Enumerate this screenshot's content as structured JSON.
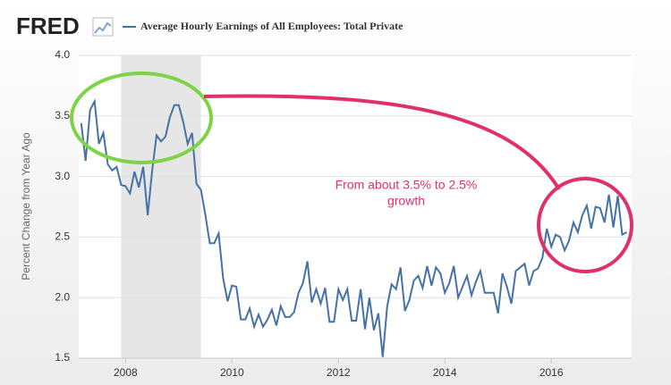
{
  "chart_data": {
    "type": "line",
    "logo": "FRED",
    "y_label": "Percent Change from Year Ago",
    "annotation": [
      "From about 3.5% to 2.5%",
      "growth"
    ],
    "annotation_color": "#e0306c",
    "highlight_color": "#7ed348",
    "recession": [
      2007.917,
      2009.417
    ],
    "recession_color": "#e6e6e6",
    "grid": true,
    "xlim": [
      2007.12,
      2017.51
    ],
    "xticks": [
      2008,
      2010,
      2012,
      2014,
      2016
    ],
    "ylim": [
      1.5,
      4.0
    ],
    "yticks": [
      1.5,
      {
        "value": 2,
        "label": "2.0"
      },
      2.5,
      {
        "value": 3,
        "label": "3.0"
      },
      3.5,
      {
        "value": 4,
        "label": "4.0"
      }
    ],
    "x": [
      2007.167,
      2007.25,
      2007.333,
      2007.417,
      2007.5,
      2007.583,
      2007.667,
      2007.75,
      2007.833,
      2007.917,
      2008,
      2008.083,
      2008.167,
      2008.25,
      2008.333,
      2008.417,
      2008.5,
      2008.583,
      2008.667,
      2008.75,
      2008.833,
      2008.917,
      2009,
      2009.083,
      2009.167,
      2009.25,
      2009.333,
      2009.417,
      2009.5,
      2009.583,
      2009.667,
      2009.75,
      2009.833,
      2009.917,
      2010,
      2010.083,
      2010.167,
      2010.25,
      2010.333,
      2010.417,
      2010.5,
      2010.583,
      2010.667,
      2010.75,
      2010.833,
      2010.917,
      2011,
      2011.083,
      2011.167,
      2011.25,
      2011.333,
      2011.417,
      2011.5,
      2011.583,
      2011.667,
      2011.75,
      2011.833,
      2011.917,
      2012,
      2012.083,
      2012.167,
      2012.25,
      2012.333,
      2012.417,
      2012.5,
      2012.583,
      2012.667,
      2012.75,
      2012.833,
      2012.917,
      2013,
      2013.083,
      2013.167,
      2013.25,
      2013.333,
      2013.417,
      2013.5,
      2013.583,
      2013.667,
      2013.75,
      2013.833,
      2013.917,
      2014,
      2014.083,
      2014.167,
      2014.25,
      2014.333,
      2014.417,
      2014.5,
      2014.583,
      2014.667,
      2014.75,
      2014.833,
      2014.917,
      2015,
      2015.083,
      2015.167,
      2015.25,
      2015.333,
      2015.417,
      2015.5,
      2015.583,
      2015.667,
      2015.75,
      2015.833,
      2015.917,
      2016,
      2016.083,
      2016.167,
      2016.25,
      2016.333,
      2016.417,
      2016.5,
      2016.583,
      2016.667,
      2016.75,
      2016.833,
      2016.917,
      2017,
      2017.083,
      2017.167,
      2017.25,
      2017.333,
      2017.417
    ],
    "series": [
      {
        "name": "Average Hourly Earnings of All Employees: Total Private",
        "color": "#4572a7",
        "values": [
          3.44,
          3.13,
          3.55,
          3.62,
          3.27,
          3.36,
          3.1,
          3.05,
          3.08,
          2.93,
          2.92,
          2.86,
          3.04,
          2.91,
          3.08,
          2.68,
          3.05,
          3.34,
          3.29,
          3.33,
          3.49,
          3.59,
          3.59,
          3.45,
          3.27,
          3.36,
          2.94,
          2.89,
          2.68,
          2.45,
          2.45,
          2.53,
          2.16,
          1.97,
          2.1,
          2.09,
          1.82,
          1.82,
          1.91,
          1.76,
          1.86,
          1.76,
          1.82,
          1.9,
          1.77,
          1.93,
          1.84,
          1.84,
          1.88,
          2.04,
          2.12,
          2.3,
          1.96,
          2.07,
          1.95,
          2.08,
          1.8,
          1.8,
          2.07,
          1.98,
          2.07,
          1.81,
          1.81,
          2.07,
          1.74,
          2.0,
          1.73,
          1.87,
          1.51,
          1.93,
          2.11,
          2.07,
          2.25,
          1.89,
          1.98,
          2.14,
          2.18,
          2.08,
          2.26,
          2.1,
          2.25,
          2.2,
          2.04,
          2.12,
          2.26,
          2.0,
          2.09,
          2.18,
          2.02,
          2.13,
          2.22,
          2.04,
          2.04,
          2.04,
          1.87,
          2.2,
          2.09,
          1.95,
          2.22,
          2.25,
          2.28,
          2.1,
          2.22,
          2.24,
          2.33,
          2.57,
          2.42,
          2.52,
          2.5,
          2.39,
          2.47,
          2.62,
          2.54,
          2.68,
          2.76,
          2.57,
          2.75,
          2.74,
          2.62,
          2.85,
          2.58,
          2.84,
          2.52,
          2.54
        ]
      }
    ]
  }
}
